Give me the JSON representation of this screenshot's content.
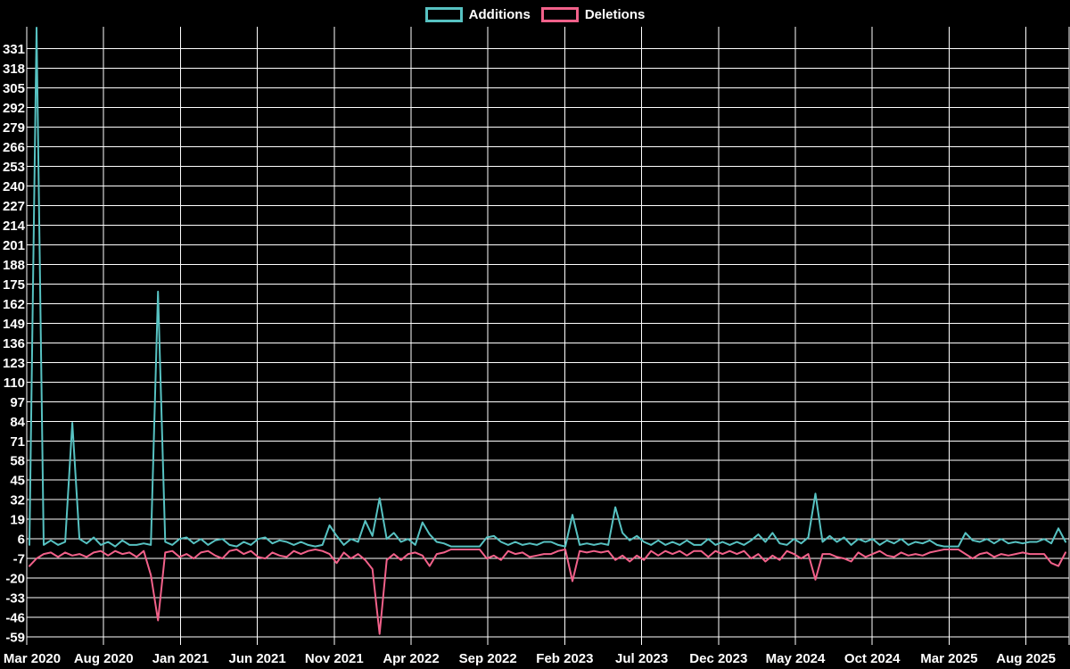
{
  "colors": {
    "background": "#000000",
    "grid": "#ffffff",
    "text": "#ffffff",
    "additions": "#57c2c2",
    "deletions": "#f2618a"
  },
  "legend": {
    "items": [
      {
        "label": "Additions"
      },
      {
        "label": "Deletions"
      }
    ]
  },
  "chart_data": {
    "type": "line",
    "title": "",
    "xlabel": "",
    "ylabel": "",
    "grid": true,
    "legend_position": "top-center",
    "ylim": [
      -59,
      331
    ],
    "y_axis": {
      "ticks": [
        331,
        318,
        305,
        292,
        279,
        266,
        253,
        240,
        227,
        214,
        201,
        188,
        175,
        162,
        149,
        136,
        123,
        110,
        97,
        84,
        71,
        58,
        45,
        32,
        19,
        6,
        -7,
        -20,
        -33,
        -46,
        -59
      ],
      "tick_step": 13
    },
    "x_axis": {
      "tick_labels": [
        "Mar 2020",
        "Aug 2020",
        "Jan 2021",
        "Jun 2021",
        "Nov 2021",
        "Apr 2022",
        "Sep 2022",
        "Feb 2023",
        "Jul 2023",
        "Dec 2023",
        "May 2024",
        "Oct 2024",
        "Mar 2025",
        "Aug 2025"
      ],
      "tick_interval_months": 5
    },
    "first_point_clipped_above_axis": true,
    "series": [
      {
        "name": "Additions",
        "color": "#57c2c2",
        "values": [
          2,
          345,
          2,
          5,
          2,
          4,
          83,
          6,
          3,
          7,
          2,
          4,
          1,
          5,
          2,
          2,
          3,
          2,
          170,
          4,
          2,
          6,
          7,
          3,
          6,
          2,
          5,
          6,
          2,
          1,
          4,
          2,
          6,
          7,
          3,
          5,
          4,
          2,
          4,
          2,
          1,
          2,
          15,
          8,
          2,
          6,
          4,
          18,
          8,
          33,
          6,
          10,
          4,
          6,
          2,
          17,
          9,
          4,
          3,
          1,
          1,
          1,
          1,
          1,
          7,
          8,
          4,
          2,
          4,
          2,
          3,
          2,
          4,
          4,
          2,
          1,
          22,
          2,
          3,
          2,
          3,
          2,
          27,
          10,
          5,
          8,
          4,
          2,
          5,
          2,
          4,
          2,
          5,
          2,
          2,
          6,
          2,
          4,
          2,
          4,
          2,
          5,
          9,
          4,
          10,
          3,
          2,
          6,
          3,
          7,
          36,
          4,
          8,
          4,
          7,
          2,
          6,
          4,
          6,
          2,
          5,
          3,
          6,
          2,
          4,
          3,
          5,
          2,
          1,
          1,
          1,
          10,
          5,
          4,
          6,
          3,
          6,
          3,
          4,
          3,
          4,
          4,
          6,
          3,
          13,
          4
        ]
      },
      {
        "name": "Deletions",
        "color": "#f2618a",
        "values": [
          -12,
          -7,
          -4,
          -3,
          -6,
          -3,
          -5,
          -4,
          -6,
          -3,
          -2,
          -5,
          -2,
          -4,
          -3,
          -6,
          -2,
          -18,
          -48,
          -3,
          -2,
          -6,
          -4,
          -7,
          -3,
          -2,
          -5,
          -7,
          -2,
          -1,
          -4,
          -2,
          -6,
          -7,
          -3,
          -5,
          -6,
          -2,
          -4,
          -2,
          -1,
          -2,
          -4,
          -10,
          -3,
          -7,
          -4,
          -8,
          -14,
          -57,
          -8,
          -4,
          -8,
          -4,
          -3,
          -5,
          -12,
          -4,
          -3,
          -1,
          -1,
          -1,
          -1,
          -1,
          -7,
          -5,
          -8,
          -2,
          -4,
          -3,
          -6,
          -5,
          -4,
          -4,
          -2,
          -1,
          -22,
          -2,
          -3,
          -2,
          -3,
          -2,
          -8,
          -5,
          -9,
          -5,
          -8,
          -2,
          -5,
          -2,
          -4,
          -2,
          -5,
          -2,
          -2,
          -6,
          -2,
          -4,
          -2,
          -4,
          -2,
          -7,
          -4,
          -9,
          -5,
          -8,
          -2,
          -4,
          -7,
          -4,
          -21,
          -4,
          -4,
          -6,
          -7,
          -9,
          -3,
          -6,
          -4,
          -2,
          -5,
          -6,
          -3,
          -5,
          -4,
          -5,
          -3,
          -2,
          -1,
          -1,
          -1,
          -4,
          -7,
          -4,
          -3,
          -6,
          -4,
          -5,
          -4,
          -3,
          -4,
          -4,
          -4,
          -10,
          -12,
          -3
        ]
      }
    ]
  }
}
